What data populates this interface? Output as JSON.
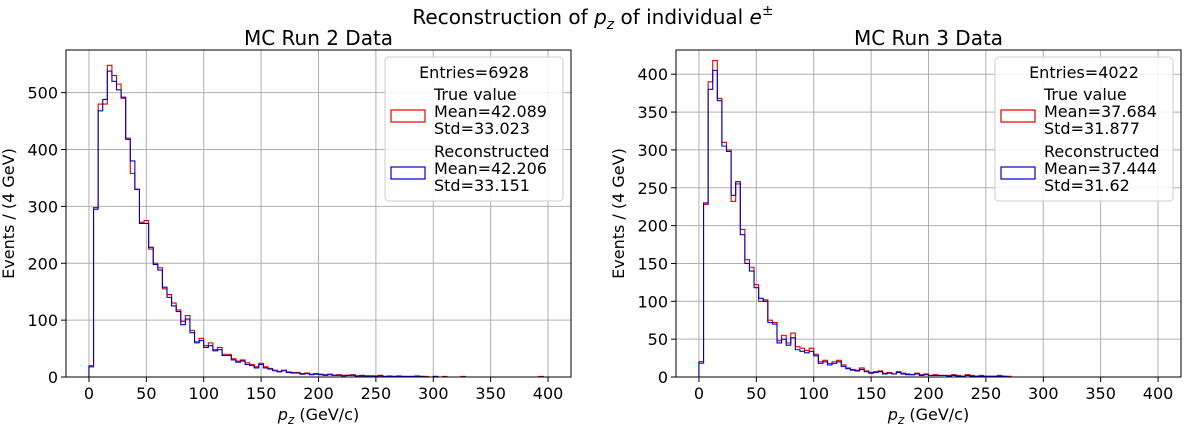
{
  "figure": {
    "suptitle_prefix": "Reconstruction of ",
    "suptitle_var_base": "p",
    "suptitle_var_sub": "z",
    "suptitle_mid": " of individual ",
    "suptitle_particle_base": "e",
    "suptitle_particle_sup": "±"
  },
  "chart_data": [
    {
      "type": "histogram",
      "title": "MC Run 2 Data",
      "xlabel_base": "p",
      "xlabel_sub": "z",
      "xlabel_unit": " (GeV/c)",
      "ylabel": "Events / (4 GeV)",
      "xlim": [
        -20,
        420
      ],
      "ylim": [
        0,
        575
      ],
      "xticks": [
        0,
        50,
        100,
        150,
        200,
        250,
        300,
        350,
        400
      ],
      "yticks": [
        0,
        100,
        200,
        300,
        400,
        500
      ],
      "grid": true,
      "legend_placement": "top-right",
      "bin_width": 4,
      "bin_start": 0,
      "legend": {
        "header": "Entries=6928",
        "entries": [
          {
            "lines": [
              "True value",
              "Mean=42.089",
              "Std=33.023"
            ],
            "color": "#e00000"
          },
          {
            "lines": [
              "Reconstructed",
              "Mean=42.206",
              "Std=33.151"
            ],
            "color": "#0000cc"
          }
        ]
      },
      "series": [
        {
          "name": "True value",
          "color": "#e00000",
          "values": [
            20,
            298,
            480,
            480,
            548,
            530,
            515,
            490,
            420,
            358,
            330,
            272,
            275,
            225,
            200,
            192,
            155,
            145,
            130,
            118,
            98,
            108,
            82,
            62,
            68,
            55,
            60,
            48,
            52,
            40,
            40,
            32,
            28,
            30,
            25,
            22,
            18,
            24,
            18,
            15,
            12,
            10,
            12,
            9,
            8,
            8,
            6,
            7,
            5,
            6,
            5,
            4,
            5,
            3,
            4,
            3,
            3,
            4,
            2,
            3,
            2,
            2,
            2,
            3,
            1,
            2,
            1,
            2,
            1,
            1,
            1,
            2,
            1,
            1,
            0,
            1,
            0,
            1,
            0,
            0,
            0,
            1,
            0,
            0,
            0,
            0,
            0,
            0,
            0,
            0,
            0,
            0,
            0,
            0,
            0,
            0,
            0,
            0,
            1,
            0
          ]
        },
        {
          "name": "Reconstructed",
          "color": "#0000cc",
          "values": [
            18,
            295,
            468,
            488,
            538,
            520,
            505,
            492,
            418,
            380,
            330,
            270,
            270,
            228,
            198,
            188,
            158,
            140,
            125,
            115,
            92,
            102,
            78,
            60,
            64,
            52,
            55,
            46,
            48,
            38,
            38,
            30,
            26,
            28,
            22,
            20,
            16,
            22,
            16,
            14,
            11,
            9,
            11,
            8,
            7,
            7,
            5,
            6,
            4,
            5,
            4,
            3,
            4,
            3,
            3,
            2,
            3,
            3,
            2,
            2,
            2,
            2,
            1,
            2,
            1,
            1,
            1,
            1,
            1,
            1,
            1,
            1,
            1,
            0,
            0,
            1,
            0,
            0,
            0,
            0,
            0,
            0,
            0,
            0,
            0,
            0,
            0,
            0,
            0,
            0,
            0,
            0,
            0,
            0,
            0,
            0,
            0,
            0,
            0,
            0
          ]
        }
      ]
    },
    {
      "type": "histogram",
      "title": "MC Run 3 Data",
      "xlabel_base": "p",
      "xlabel_sub": "z",
      "xlabel_unit": " (GeV/c)",
      "ylabel": "Events / (4 GeV)",
      "xlim": [
        -20,
        420
      ],
      "ylim": [
        0,
        432
      ],
      "xticks": [
        0,
        50,
        100,
        150,
        200,
        250,
        300,
        350,
        400
      ],
      "yticks": [
        0,
        50,
        100,
        150,
        200,
        250,
        300,
        350,
        400
      ],
      "grid": true,
      "legend_placement": "top-right",
      "bin_width": 4,
      "bin_start": 0,
      "legend": {
        "header": "Entries=4022",
        "entries": [
          {
            "lines": [
              "True value",
              "Mean=37.684",
              "Std=31.877"
            ],
            "color": "#e00000"
          },
          {
            "lines": [
              "Reconstructed",
              "Mean=37.444",
              "Std=31.62"
            ],
            "color": "#0000cc"
          }
        ]
      },
      "series": [
        {
          "name": "True value",
          "color": "#e00000",
          "values": [
            18,
            228,
            390,
            418,
            368,
            310,
            300,
            232,
            255,
            195,
            155,
            145,
            122,
            100,
            102,
            75,
            72,
            48,
            55,
            45,
            58,
            40,
            38,
            35,
            38,
            30,
            20,
            22,
            18,
            20,
            22,
            16,
            12,
            10,
            9,
            12,
            8,
            6,
            7,
            8,
            5,
            6,
            4,
            7,
            5,
            4,
            3,
            5,
            3,
            4,
            2,
            3,
            2,
            2,
            2,
            3,
            2,
            1,
            3,
            2,
            1,
            2,
            1,
            1,
            1,
            2,
            1,
            1,
            0,
            0,
            0,
            0,
            0,
            0,
            0,
            0,
            0,
            0,
            0,
            0,
            0,
            0,
            0,
            0,
            0,
            0,
            0,
            0,
            0,
            0,
            0,
            0,
            0,
            0,
            0,
            0,
            0,
            0,
            0,
            0
          ]
        },
        {
          "name": "Reconstructed",
          "color": "#0000cc",
          "values": [
            20,
            230,
            380,
            405,
            365,
            305,
            298,
            240,
            258,
            188,
            150,
            140,
            118,
            104,
            100,
            72,
            70,
            45,
            50,
            42,
            52,
            36,
            34,
            32,
            34,
            28,
            18,
            20,
            16,
            18,
            20,
            14,
            11,
            9,
            8,
            10,
            7,
            5,
            6,
            7,
            4,
            5,
            4,
            6,
            4,
            3,
            3,
            4,
            2,
            3,
            2,
            2,
            2,
            2,
            1,
            2,
            1,
            1,
            2,
            1,
            1,
            1,
            1,
            1,
            1,
            1,
            1,
            0,
            0,
            0,
            0,
            0,
            0,
            0,
            0,
            0,
            0,
            0,
            0,
            0,
            0,
            0,
            0,
            0,
            0,
            0,
            0,
            0,
            0,
            0,
            0,
            0,
            0,
            0,
            0,
            0,
            0,
            0,
            0,
            0
          ]
        }
      ]
    }
  ]
}
